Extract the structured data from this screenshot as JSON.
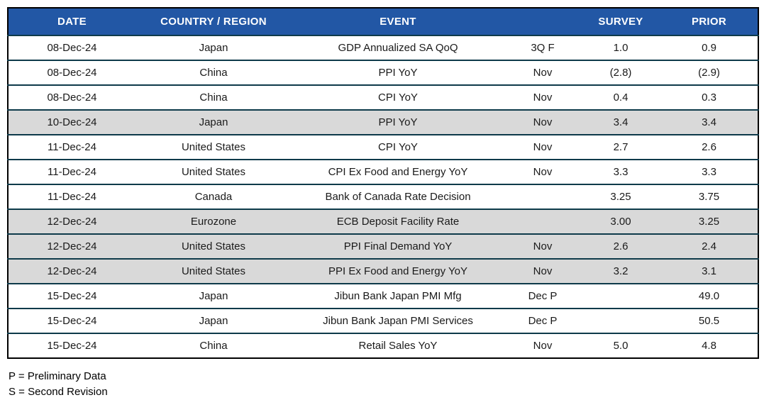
{
  "colors": {
    "header_bg": "#2257A5",
    "header_text": "#FFFFFF",
    "row_highlight": "#D9D9D9",
    "row_border": "#0E3A4A",
    "outer_border": "#000000"
  },
  "table": {
    "columns": [
      "DATE",
      "COUNTRY / REGION",
      "EVENT",
      "",
      "SURVEY",
      "PRIOR"
    ],
    "rows": [
      {
        "date": "08-Dec-24",
        "country": "Japan",
        "event": "GDP Annualized SA QoQ",
        "period": "3Q F",
        "survey": "1.0",
        "prior": "0.9",
        "highlight": false
      },
      {
        "date": "08-Dec-24",
        "country": "China",
        "event": "PPI YoY",
        "period": "Nov",
        "survey": "(2.8)",
        "prior": "(2.9)",
        "highlight": false
      },
      {
        "date": "08-Dec-24",
        "country": "China",
        "event": "CPI YoY",
        "period": "Nov",
        "survey": "0.4",
        "prior": "0.3",
        "highlight": false
      },
      {
        "date": "10-Dec-24",
        "country": "Japan",
        "event": "PPI YoY",
        "period": "Nov",
        "survey": "3.4",
        "prior": "3.4",
        "highlight": true
      },
      {
        "date": "11-Dec-24",
        "country": "United States",
        "event": "CPI YoY",
        "period": "Nov",
        "survey": "2.7",
        "prior": "2.6",
        "highlight": false
      },
      {
        "date": "11-Dec-24",
        "country": "United States",
        "event": "CPI Ex Food and Energy YoY",
        "period": "Nov",
        "survey": "3.3",
        "prior": "3.3",
        "highlight": false
      },
      {
        "date": "11-Dec-24",
        "country": "Canada",
        "event": "Bank of Canada Rate Decision",
        "period": "",
        "survey": "3.25",
        "prior": "3.75",
        "highlight": false
      },
      {
        "date": "12-Dec-24",
        "country": "Eurozone",
        "event": "ECB Deposit Facility Rate",
        "period": "",
        "survey": "3.00",
        "prior": "3.25",
        "highlight": true
      },
      {
        "date": "12-Dec-24",
        "country": "United States",
        "event": "PPI Final Demand YoY",
        "period": "Nov",
        "survey": "2.6",
        "prior": "2.4",
        "highlight": true
      },
      {
        "date": "12-Dec-24",
        "country": "United States",
        "event": "PPI Ex Food and Energy YoY",
        "period": "Nov",
        "survey": "3.2",
        "prior": "3.1",
        "highlight": true
      },
      {
        "date": "15-Dec-24",
        "country": "Japan",
        "event": "Jibun Bank Japan PMI Mfg",
        "period": "Dec P",
        "survey": "",
        "prior": "49.0",
        "highlight": false
      },
      {
        "date": "15-Dec-24",
        "country": "Japan",
        "event": "Jibun Bank Japan PMI Services",
        "period": "Dec P",
        "survey": "",
        "prior": "50.5",
        "highlight": false
      },
      {
        "date": "15-Dec-24",
        "country": "China",
        "event": "Retail Sales YoY",
        "period": "Nov",
        "survey": "5.0",
        "prior": "4.8",
        "highlight": false
      }
    ]
  },
  "footnotes": {
    "line1": "P = Preliminary Data",
    "line2": "S = Second Revision"
  }
}
